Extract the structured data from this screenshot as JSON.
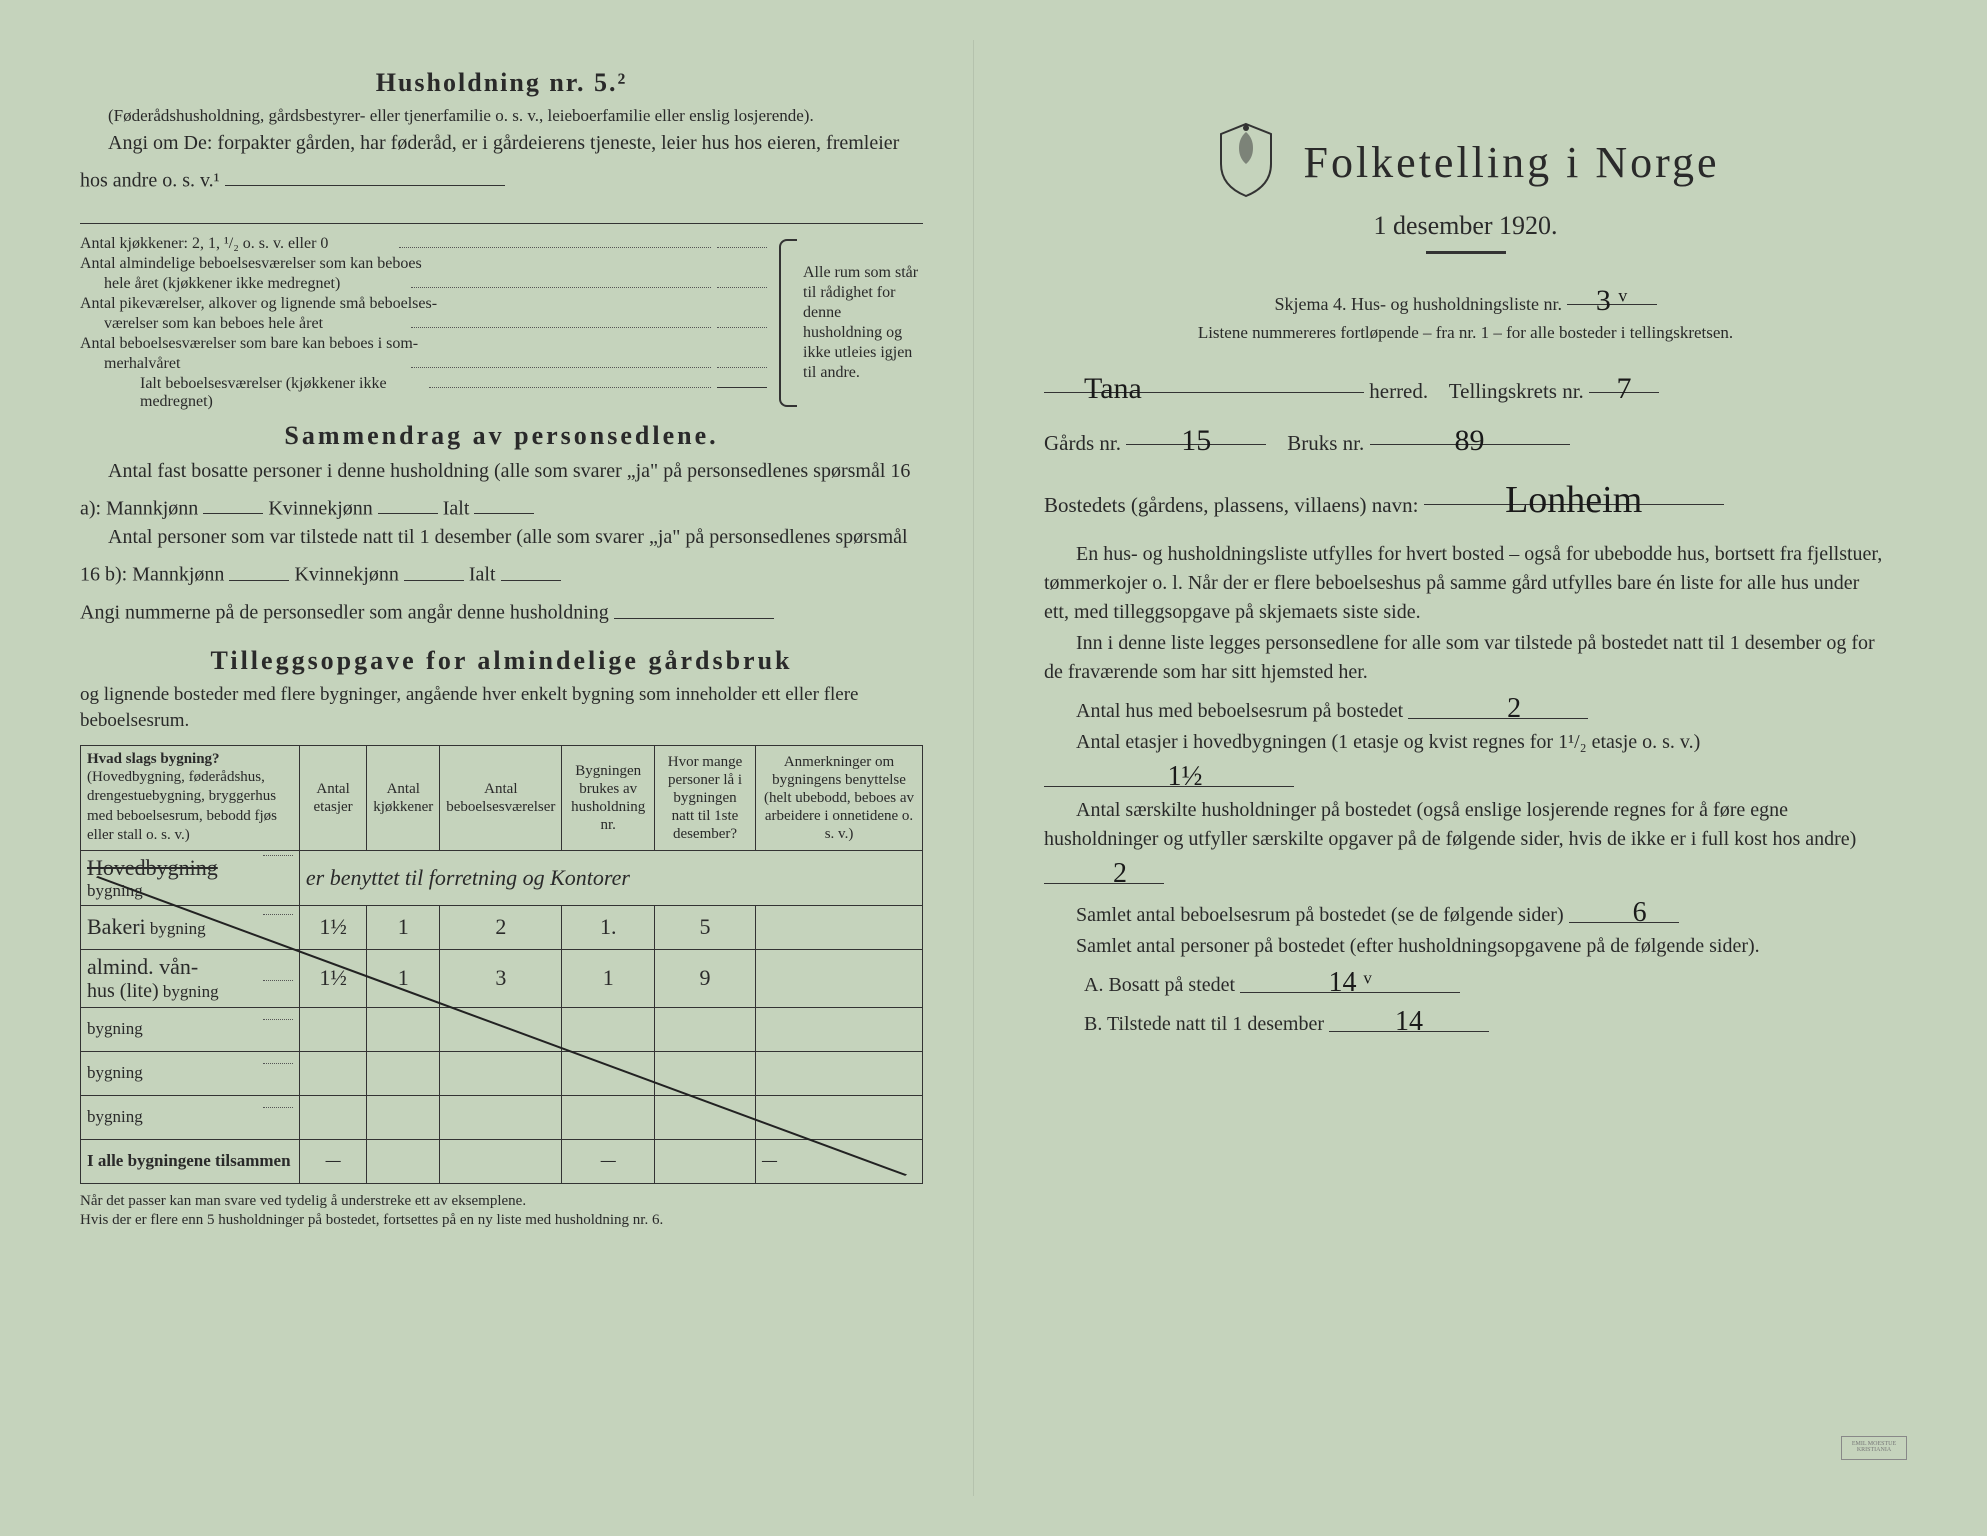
{
  "left": {
    "household_title": "Husholdning nr. 5.²",
    "household_para1": "(Føderådshusholdning, gårdsbestyrer- eller tjenerfamilie o. s. v., leieboerfamilie eller enslig losjerende).",
    "household_para2": "Angi om De: forpakter gården, har føderåd, er i gårdeierens tjeneste, leier hus hos eieren, fremleier hos andre o. s. v.¹",
    "rooms": {
      "r1": "Antal kjøkkener: 2, 1, ¹/₂ o. s. v. eller 0",
      "r2a": "Antal almindelige beboelsesværelser som kan beboes",
      "r2b": "hele året (kjøkkener ikke medregnet)",
      "r3a": "Antal pikeværelser, alkover og lignende små beboelses-",
      "r3b": "værelser som kan beboes hele året",
      "r4a": "Antal beboelsesværelser som bare kan beboes i som-",
      "r4b": "merhalvåret",
      "r5": "Ialt beboelsesværelser (kjøkkener ikke medregnet)",
      "brace_text": "Alle rum som står til rådighet for denne husholdning og ikke utleies igjen til andre."
    },
    "summary_title": "Sammendrag av personsedlene.",
    "summary_p1a": "Antal fast bosatte personer i denne husholdning (alle som svarer „ja\" på personsedlenes spørsmål 16 a): Mannkjønn",
    "summary_p1b": "Kvinnekjønn",
    "summary_p1c": "Ialt",
    "summary_p2a": "Antal personer som var tilstede natt til 1 desember (alle som svarer „ja\" på personsedlenes spørsmål 16 b): Mannkjønn",
    "summary_p2b": "Kvinnekjønn",
    "summary_p2c": "Ialt",
    "summary_p3": "Angi nummerne på de personsedler som angår denne husholdning",
    "tillegg_title": "Tilleggsopgave for almindelige gårdsbruk",
    "tillegg_sub": "og lignende bosteder med flere bygninger, angående hver enkelt bygning som inneholder ett eller flere beboelsesrum.",
    "table": {
      "h1": "Hvad slags bygning?",
      "h1_sub": "(Hovedbygning, føderådshus, drengestuebygning, bryggerhus med beboelsesrum, bebodd fjøs eller stall o. s. v.)",
      "h2": "Antal etasjer",
      "h3": "Antal kjøkkener",
      "h4": "Antal beboelsesværelser",
      "h5": "Bygningen brukes av husholdning nr.",
      "h6": "Hvor mange personer lå i bygningen natt til 1ste desember?",
      "h7": "Anmerkninger om bygningens benyttelse (helt ubebodd, beboes av arbeidere i onnetidene o. s. v.)",
      "row_suffix": "bygning",
      "rows": [
        {
          "name": "Hovedbygning",
          "strike": true,
          "etasjer": "",
          "kjokken": "",
          "vaerelser": "",
          "hush": "",
          "pers": "",
          "anm": "er benyttet til forretning og Kontorer"
        },
        {
          "name": "Bakeri",
          "etasjer": "1½",
          "kjokken": "1",
          "vaerelser": "2",
          "hush": "1.",
          "pers": "5",
          "anm": ""
        },
        {
          "name": "almind. vån-",
          "sub": "hus (lite)",
          "etasjer": "1½",
          "kjokken": "1",
          "vaerelser": "3",
          "hush": "1",
          "pers": "9",
          "anm": ""
        },
        {
          "name": "",
          "etasjer": "",
          "kjokken": "",
          "vaerelser": "",
          "hush": "",
          "pers": "",
          "anm": ""
        },
        {
          "name": "",
          "etasjer": "",
          "kjokken": "",
          "vaerelser": "",
          "hush": "",
          "pers": "",
          "anm": ""
        },
        {
          "name": "",
          "etasjer": "",
          "kjokken": "",
          "vaerelser": "",
          "hush": "",
          "pers": "",
          "anm": ""
        }
      ],
      "total_label": "I alle bygningene tilsammen",
      "total_dash": "—"
    },
    "footnote": "Når det passer kan man svare ved tydelig å understreke ett av eksemplene.\nHvis der er flere enn 5 husholdninger på bostedet, fortsettes på en ny liste med husholdning nr. 6."
  },
  "right": {
    "main_title": "Folketelling i Norge",
    "subtitle": "1 desember 1920.",
    "skjema_line": "Skjema 4. Hus- og husholdningsliste nr.",
    "liste_nr": "3 ᵛ",
    "list_note": "Listene nummereres fortløpende – fra nr. 1 – for alle bosteder i tellingskretsen.",
    "herred_label": "herred.",
    "herred_value": "Tana",
    "krets_label": "Tellingskrets nr.",
    "krets_value": "7",
    "gards_label": "Gårds nr.",
    "gards_value": "15",
    "bruks_label": "Bruks nr.",
    "bruks_value": "89",
    "bosted_label": "Bostedets (gårdens, plassens, villaens) navn:",
    "bosted_value": "Lonheim",
    "para1": "En hus- og husholdningsliste utfylles for hvert bosted – også for ubebodde hus, bortsett fra fjellstuer, tømmerkojer o. l. Når der er flere beboelseshus på samme gård utfylles bare én liste for alle hus under ett, med tilleggsopgave på skjemaets siste side.",
    "para2": "Inn i denne liste legges personsedlene for alle som var tilstede på bostedet natt til 1 desember og for de fraværende som har sitt hjemsted her.",
    "q1_label": "Antal hus med beboelsesrum på bostedet",
    "q1_value": "2",
    "q2_label_a": "Antal etasjer i hovedbygningen (1 etasje og kvist regnes for 1¹/₂ etasje o. s. v.)",
    "q2_value": "1½",
    "q3_label_a": "Antal særskilte husholdninger på bostedet (også enslige losjerende regnes for å føre egne husholdninger og utfyller særskilte opgaver på de følgende sider, hvis de ikke er i full kost hos andre)",
    "q3_value": "2",
    "q4_label": "Samlet antal beboelsesrum på bostedet (se de følgende sider)",
    "q4_value": "6",
    "q5_label": "Samlet antal personer på bostedet (efter husholdningsopgavene på de følgende sider).",
    "q5a_label": "A. Bosatt på stedet",
    "q5a_value": "14 ᵛ",
    "q5b_label": "B. Tilstede natt til 1 desember",
    "q5b_value": "14"
  }
}
